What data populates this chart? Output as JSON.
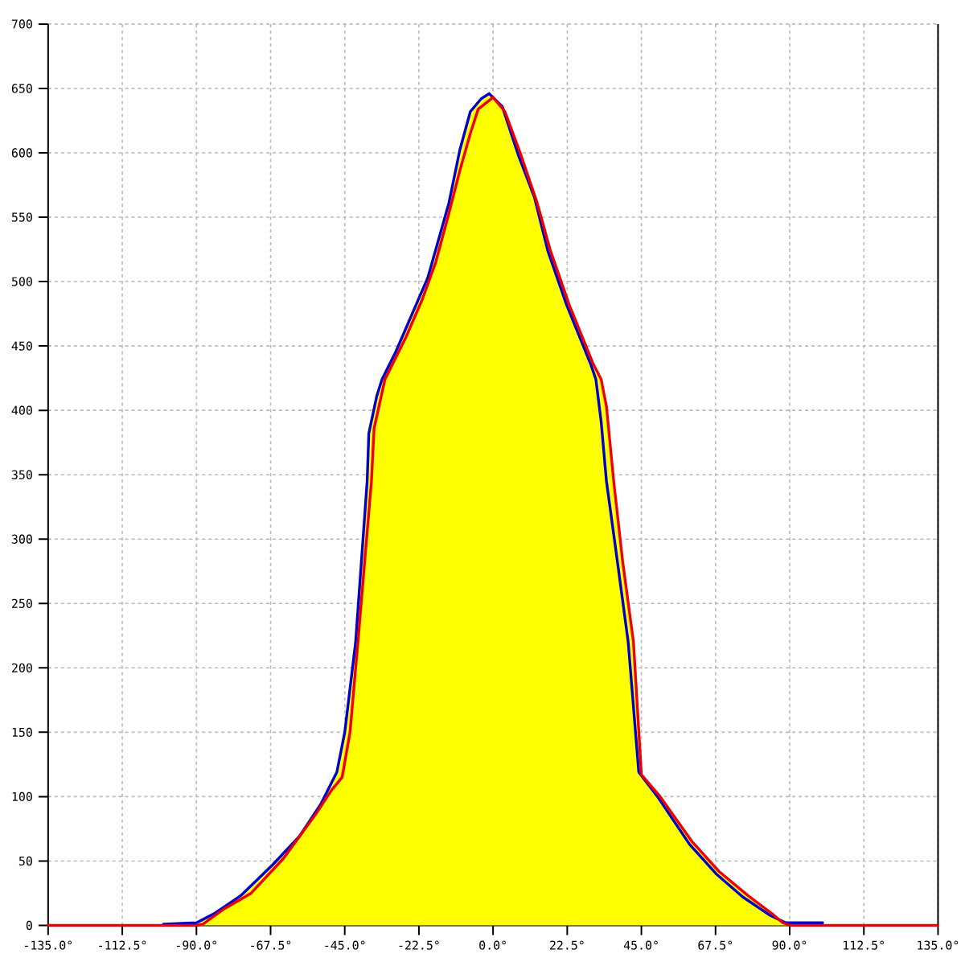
{
  "chart_data": {
    "type": "line",
    "grid": true,
    "xlim": [
      -135,
      135
    ],
    "ylim": [
      0,
      700
    ],
    "xticks": [
      {
        "value": -135,
        "label": "-135.0°"
      },
      {
        "value": -112.5,
        "label": "-112.5°"
      },
      {
        "value": -90,
        "label": "-90.0°"
      },
      {
        "value": -67.5,
        "label": "-67.5°"
      },
      {
        "value": -45,
        "label": "-45.0°"
      },
      {
        "value": -22.5,
        "label": "-22.5°"
      },
      {
        "value": 0,
        "label": "0.0°"
      },
      {
        "value": 22.5,
        "label": "22.5°"
      },
      {
        "value": 45,
        "label": "45.0°"
      },
      {
        "value": 67.5,
        "label": "67.5°"
      },
      {
        "value": 90,
        "label": "90.0°"
      },
      {
        "value": 112.5,
        "label": "112.5°"
      },
      {
        "value": 135,
        "label": "135.0°"
      }
    ],
    "yticks": [
      0,
      50,
      100,
      150,
      200,
      250,
      300,
      350,
      400,
      450,
      500,
      550,
      600,
      650,
      700
    ],
    "series": [
      {
        "type": "area",
        "color": "#ffff00",
        "x": [
          -90,
          -84.7,
          -76.6,
          -66.9,
          -58.8,
          -52.3,
          -47.4,
          -45,
          -41.7,
          -38.2,
          -37.7,
          -35.3,
          -33.7,
          -29.6,
          -24.7,
          -19.8,
          -16.6,
          -13.4,
          -10.1,
          -6.9,
          -3.6,
          -1.2,
          0,
          3.6,
          8.5,
          13.4,
          17.4,
          23.1,
          30.4,
          32.8,
          34.4,
          36.6,
          39.3,
          42.6,
          45,
          50.7,
          60.4,
          68.5,
          77.4,
          84.7,
          87.9,
          90
        ],
        "values": [
          0,
          9,
          23,
          47,
          69,
          94,
          119,
          150,
          220,
          345,
          382,
          411,
          424,
          445,
          474,
          503,
          532,
          561,
          602,
          632,
          642,
          646,
          643,
          632,
          598,
          561,
          524,
          482,
          436,
          424,
          403,
          345,
          283,
          220,
          117,
          100,
          65,
          42,
          23,
          9,
          2,
          0
        ]
      },
      {
        "color": "#0000cc",
        "x": [
          -100,
          -90,
          -84.7,
          -76.6,
          -66.9,
          -58.8,
          -52.3,
          -47.4,
          -45,
          -41.7,
          -38.2,
          -37.7,
          -35.3,
          -33.7,
          -29.6,
          -24.7,
          -19.8,
          -16.6,
          -13.4,
          -10.1,
          -6.9,
          -3.6,
          -1.2,
          2.8,
          7.7,
          12.6,
          16.6,
          22.3,
          29.6,
          31.2,
          32.8,
          34.4,
          37.7,
          41,
          44.2,
          49.9,
          59.6,
          67.7,
          75.8,
          83.9,
          88.8,
          100
        ],
        "values": [
          1,
          2,
          9,
          23,
          47,
          69,
          94,
          119,
          150,
          220,
          345,
          382,
          411,
          424,
          445,
          474,
          503,
          532,
          561,
          602,
          632,
          642,
          646,
          636,
          598,
          565,
          524,
          482,
          436,
          424,
          391,
          345,
          283,
          220,
          119,
          100,
          63,
          40,
          22,
          8,
          2,
          2
        ]
      },
      {
        "color": "#ee0000",
        "x": [
          -135,
          -90,
          -88,
          -81.5,
          -73.4,
          -63.6,
          -53.9,
          -49,
          -45.8,
          -43.4,
          -41,
          -36.9,
          -36.1,
          -32.8,
          -26.4,
          -21.5,
          -17.4,
          -13.4,
          -10.1,
          -6.9,
          -4.5,
          0,
          3.6,
          8.5,
          13.4,
          17.4,
          23.1,
          30.4,
          32.8,
          34.4,
          36.6,
          39.3,
          42.6,
          45,
          50.7,
          60.4,
          68.5,
          77.4,
          84.7,
          87.9,
          90,
          135
        ],
        "values": [
          0,
          0,
          1,
          13,
          25,
          52,
          86,
          105,
          115,
          150,
          220,
          345,
          386,
          424,
          457,
          486,
          515,
          553,
          586,
          615,
          634,
          643,
          632,
          598,
          561,
          524,
          482,
          436,
          424,
          403,
          345,
          283,
          220,
          117,
          100,
          65,
          42,
          23,
          9,
          2,
          0,
          0
        ]
      }
    ]
  }
}
